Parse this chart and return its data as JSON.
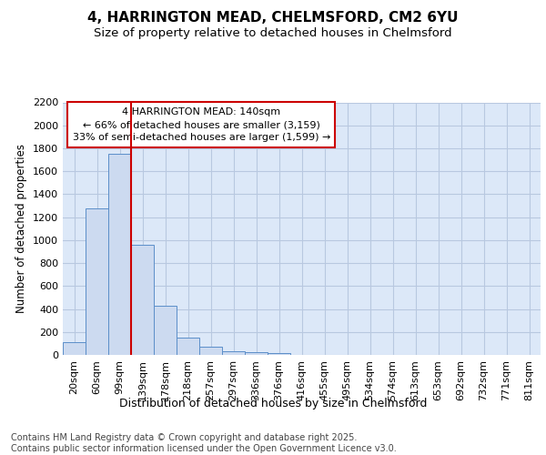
{
  "title1": "4, HARRINGTON MEAD, CHELMSFORD, CM2 6YU",
  "title2": "Size of property relative to detached houses in Chelmsford",
  "xlabel": "Distribution of detached houses by size in Chelmsford",
  "ylabel": "Number of detached properties",
  "categories": [
    "20sqm",
    "60sqm",
    "99sqm",
    "139sqm",
    "178sqm",
    "218sqm",
    "257sqm",
    "297sqm",
    "336sqm",
    "376sqm",
    "416sqm",
    "455sqm",
    "495sqm",
    "534sqm",
    "574sqm",
    "613sqm",
    "653sqm",
    "692sqm",
    "732sqm",
    "771sqm",
    "811sqm"
  ],
  "values": [
    110,
    1280,
    1750,
    960,
    430,
    150,
    75,
    35,
    25,
    15,
    0,
    0,
    0,
    0,
    0,
    0,
    0,
    0,
    0,
    0,
    0
  ],
  "bar_color": "#ccdaf0",
  "bar_edge_color": "#5b8ec9",
  "vline_x_index": 2.5,
  "vline_color": "#cc0000",
  "annotation_text": "4 HARRINGTON MEAD: 140sqm\n← 66% of detached houses are smaller (3,159)\n33% of semi-detached houses are larger (1,599) →",
  "annotation_box_color": "#cc0000",
  "ylim": [
    0,
    2200
  ],
  "yticks": [
    0,
    200,
    400,
    600,
    800,
    1000,
    1200,
    1400,
    1600,
    1800,
    2000,
    2200
  ],
  "grid_color": "#b8c8e0",
  "bg_color": "#dce8f8",
  "plot_bg_color": "#dce8f8",
  "fig_bg_color": "#ffffff",
  "footnote": "Contains HM Land Registry data © Crown copyright and database right 2025.\nContains public sector information licensed under the Open Government Licence v3.0.",
  "title1_fontsize": 11,
  "title2_fontsize": 9.5,
  "xlabel_fontsize": 9,
  "ylabel_fontsize": 8.5,
  "tick_fontsize": 8,
  "annotation_fontsize": 8,
  "footnote_fontsize": 7
}
